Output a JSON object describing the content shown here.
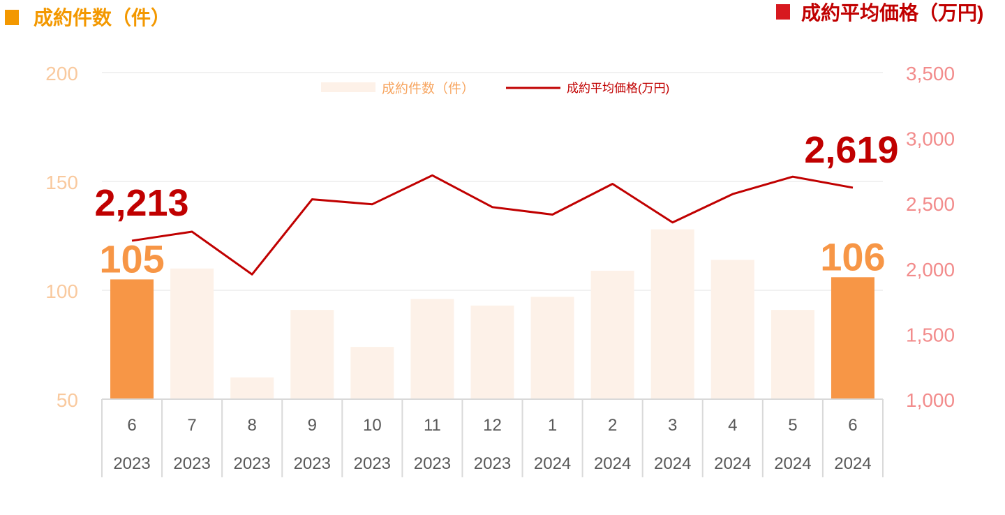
{
  "header": {
    "left_title": "成約件数（件）",
    "right_title": "成約平均価格（万円)",
    "left_marker_color": "#f39800",
    "right_marker_color": "#d7191f"
  },
  "legend": {
    "bar_label": "成約件数（件）",
    "line_label": "成約平均価格(万円)"
  },
  "colors": {
    "bar_highlight": "#f79646",
    "bar_normal": "#fdf1e8",
    "line": "#c00000",
    "left_axis_text": "#f9c99e",
    "right_axis_text": "#f28b8b",
    "bar_label_text": "#f79646",
    "line_label_text": "#c00000",
    "legend_bar_text": "#f7a560",
    "legend_line_text": "#c00000",
    "category_text": "#595959"
  },
  "chart_data": {
    "type": "bar+line",
    "categories": [
      {
        "month": "6",
        "year": "2023"
      },
      {
        "month": "7",
        "year": "2023"
      },
      {
        "month": "8",
        "year": "2023"
      },
      {
        "month": "9",
        "year": "2023"
      },
      {
        "month": "10",
        "year": "2023"
      },
      {
        "month": "11",
        "year": "2023"
      },
      {
        "month": "12",
        "year": "2023"
      },
      {
        "month": "1",
        "year": "2024"
      },
      {
        "month": "2",
        "year": "2024"
      },
      {
        "month": "3",
        "year": "2024"
      },
      {
        "month": "4",
        "year": "2024"
      },
      {
        "month": "5",
        "year": "2024"
      },
      {
        "month": "6",
        "year": "2024"
      }
    ],
    "bar_series": {
      "name": "成約件数（件）",
      "values": [
        105,
        110,
        60,
        91,
        74,
        96,
        93,
        97,
        109,
        128,
        114,
        91,
        106
      ],
      "highlight_indices": [
        0,
        12
      ],
      "labels": [
        {
          "index": 0,
          "text": "105"
        },
        {
          "index": 12,
          "text": "106"
        }
      ]
    },
    "line_series": {
      "name": "成約平均価格(万円)",
      "values": [
        2213,
        2282,
        1955,
        2530,
        2492,
        2713,
        2470,
        2413,
        2648,
        2353,
        2570,
        2703,
        2619
      ],
      "labels": [
        {
          "index": 0,
          "text": "2,213"
        },
        {
          "index": 12,
          "text": "2,619"
        }
      ]
    },
    "left_axis": {
      "min": 50,
      "max": 200,
      "ticks": [
        "50",
        "100",
        "150",
        "200"
      ],
      "tick_values": [
        50,
        100,
        150,
        200
      ]
    },
    "right_axis": {
      "min": 1000,
      "max": 3500,
      "ticks": [
        "1,000",
        "1,500",
        "2,000",
        "2,500",
        "3,000",
        "3,500"
      ],
      "tick_values": [
        1000,
        1500,
        2000,
        2500,
        3000,
        3500
      ]
    },
    "grid": true,
    "legend_position": "top"
  }
}
